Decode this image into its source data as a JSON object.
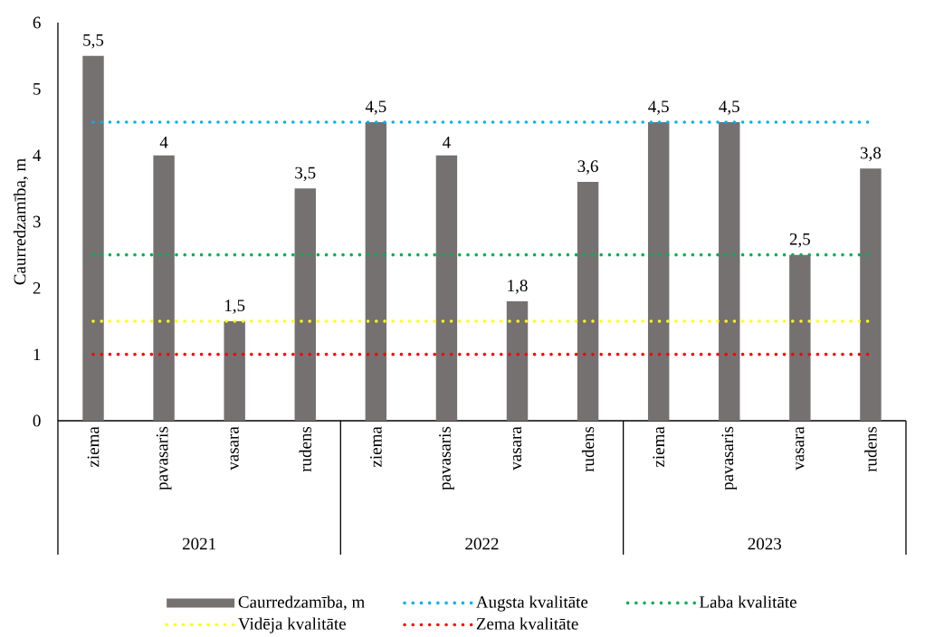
{
  "chart_data": {
    "type": "bar",
    "ylabel": "Caurredzamība, m",
    "categories": [
      "ziema",
      "pavasaris",
      "vasara",
      "rudens",
      "ziema",
      "pavasaris",
      "vasara",
      "rudens",
      "ziema",
      "pavasaris",
      "vasara",
      "rudens"
    ],
    "series": [
      {
        "name": "Caurredzamība, m",
        "color": "#757171",
        "values": [
          5.5,
          4,
          1.5,
          3.5,
          4.5,
          4,
          1.8,
          3.6,
          4.5,
          4.5,
          2.5,
          3.8
        ],
        "value_labels": [
          "5,5",
          "4",
          "1,5",
          "3,5",
          "4,5",
          "4",
          "1,8",
          "3,6",
          "4,5",
          "4,5",
          "2,5",
          "3,8"
        ]
      }
    ],
    "ref_lines": [
      {
        "axis": "y",
        "value": 4.5,
        "label": "Augsta kvalitāte",
        "color": "#00b0f0",
        "line_style": "dotted"
      },
      {
        "axis": "y",
        "value": 2.5,
        "label": "Laba kvalitāte",
        "color": "#00b050",
        "line_style": "dotted"
      },
      {
        "axis": "y",
        "value": 1.5,
        "label": "Vidēja kvalitāte",
        "color": "#ffff00",
        "line_style": "dotted"
      },
      {
        "axis": "y",
        "value": 1,
        "label": "Zema kvalitāte",
        "color": "#ff0000",
        "line_style": "dotted"
      }
    ],
    "annotations": [
      "2021",
      "2022",
      "2023"
    ],
    "ylim": [
      0,
      6
    ],
    "yticks": [
      0,
      1,
      2,
      3,
      4,
      5,
      6
    ],
    "grid": false,
    "legend": "bottom"
  }
}
